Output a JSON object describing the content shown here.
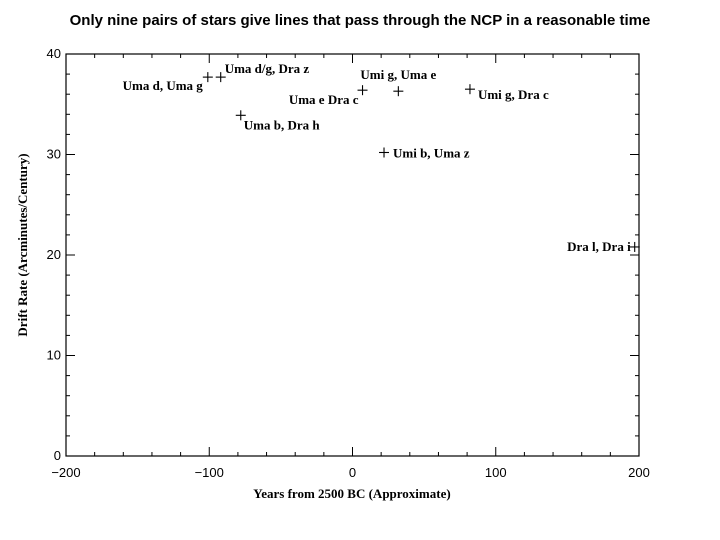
{
  "chart_data": {
    "type": "scatter",
    "title": "Only nine pairs of stars give lines that pass through the NCP in a reasonable time",
    "xlabel": "Years from 2500 BC (Approximate)",
    "ylabel": "Drift Rate (Arcminutes/Century)",
    "xlim": [
      -200,
      200
    ],
    "ylim": [
      0,
      40
    ],
    "xticks": [
      -200,
      -100,
      0,
      100,
      200
    ],
    "yticks": [
      0,
      10,
      20,
      30,
      40
    ],
    "xtick_labels": [
      "−200",
      "−100",
      "0",
      "100",
      "200"
    ],
    "ytick_labels": [
      "0",
      "10",
      "20",
      "30",
      "40"
    ],
    "grid": false,
    "points": [
      {
        "x": -101,
        "y": 37.7,
        "label": "Uma d, Uma g"
      },
      {
        "x": -92,
        "y": 37.7,
        "label": "Uma d/g, Dra z"
      },
      {
        "x": -78,
        "y": 33.9,
        "label": "Uma b, Dra h"
      },
      {
        "x": 7,
        "y": 36.4,
        "label": "Uma e Dra c"
      },
      {
        "x": 32,
        "y": 36.3,
        "label": "Umi g, Uma e"
      },
      {
        "x": 82,
        "y": 36.5,
        "label": "Umi g, Dra c"
      },
      {
        "x": 22,
        "y": 30.2,
        "label": "Umi b, Uma z"
      },
      {
        "x": 197,
        "y": 20.8,
        "label": "Dra l, Dra i"
      }
    ]
  }
}
